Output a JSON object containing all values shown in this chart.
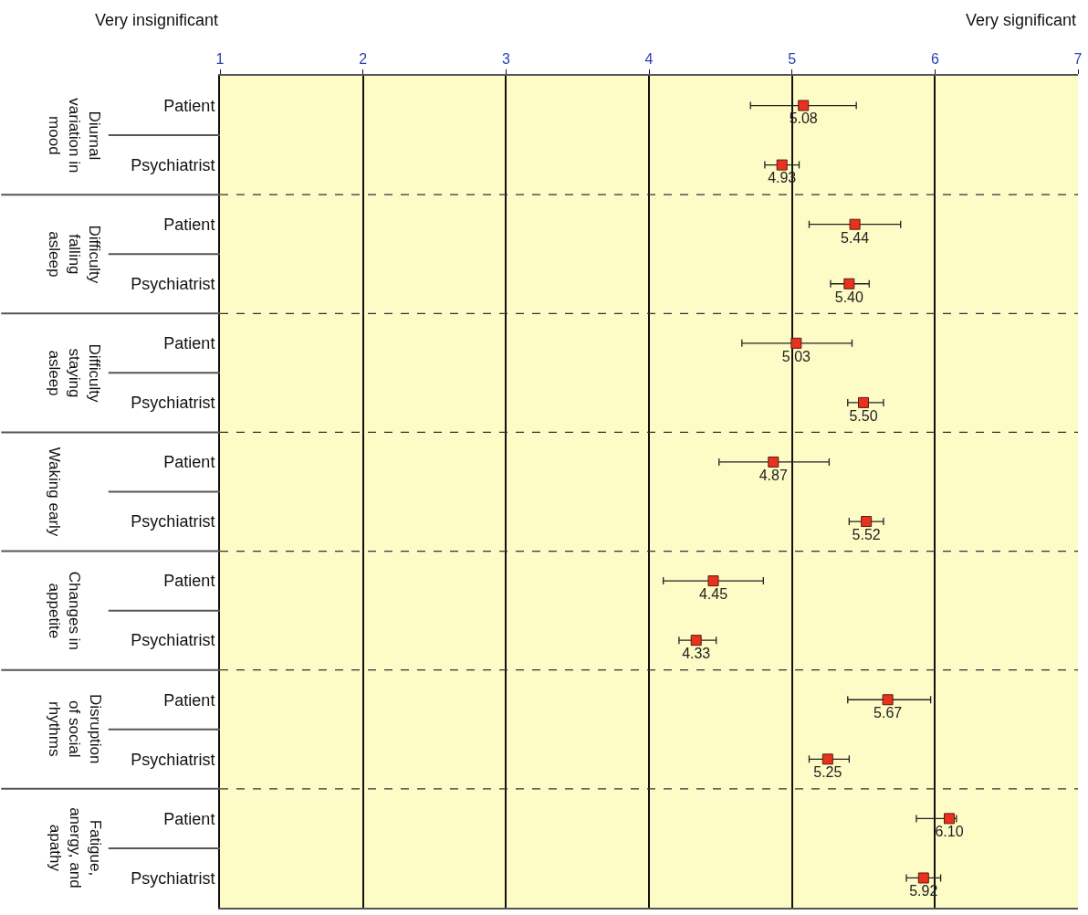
{
  "chart_data": {
    "type": "scatter",
    "categories": [
      "Patient",
      "Psychiatrist",
      "Patient",
      "Psychiatrist",
      "Patient",
      "Psychiatrist",
      "Patient",
      "Psychiatrist",
      "Patient",
      "Psychiatrist",
      "Patient",
      "Psychiatrist",
      "Patient",
      "Psychiatrist"
    ],
    "values": [
      5.08,
      4.93,
      5.44,
      5.4,
      5.03,
      5.5,
      4.87,
      5.52,
      4.45,
      4.33,
      5.67,
      5.25,
      6.1,
      5.92
    ],
    "errors": [
      [
        4.71,
        5.45
      ],
      [
        4.81,
        5.05
      ],
      [
        5.12,
        5.76
      ],
      [
        5.27,
        5.54
      ],
      [
        4.65,
        5.42
      ],
      [
        5.39,
        5.64
      ],
      [
        4.49,
        5.26
      ],
      [
        5.4,
        5.64
      ],
      [
        4.1,
        4.8
      ],
      [
        4.21,
        4.47
      ],
      [
        5.39,
        5.97
      ],
      [
        5.12,
        5.4
      ],
      [
        5.87,
        6.15
      ],
      [
        5.8,
        6.04
      ]
    ],
    "color": "#e8321e",
    "value_labels": [
      "5.08",
      "4.93",
      "5.44",
      "5.40",
      "5.03",
      "5.50",
      "4.87",
      "5.52",
      "4.45",
      "4.33",
      "5.67",
      "5.25",
      "6.10",
      "5.92"
    ],
    "marker": "square",
    "orientation": "horizontal",
    "xlim": [
      1,
      7
    ],
    "xticks": [
      1,
      2,
      3,
      4,
      5,
      6,
      7
    ],
    "grid": "x",
    "annotations": [
      "Diurnal variation in mood",
      "Difficulty falling asleep",
      "Difficulty staying asleep",
      "Waking early",
      "Changes in appetite",
      "Disruption of social rhythms",
      "Fatigue, anergy, and apathy",
      "Very insignificant",
      "Very significant"
    ]
  }
}
